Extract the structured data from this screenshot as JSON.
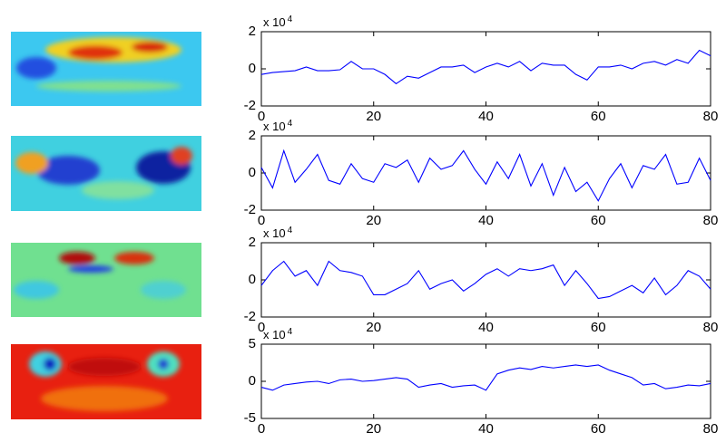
{
  "chart_data": [
    {
      "type": "line",
      "exponent": {
        "base": "x 10",
        "power": "4"
      },
      "x": [
        0,
        2,
        4,
        6,
        8,
        10,
        12,
        14,
        16,
        18,
        20,
        22,
        24,
        26,
        28,
        30,
        32,
        34,
        36,
        38,
        40,
        42,
        44,
        46,
        48,
        50,
        52,
        54,
        56,
        58,
        60,
        62,
        64,
        66,
        68,
        70,
        72,
        74,
        76,
        78,
        80
      ],
      "series": [
        {
          "color": "#0000ff",
          "values": [
            -0.3,
            -0.2,
            -0.15,
            -0.1,
            0.1,
            -0.1,
            -0.1,
            -0.05,
            0.4,
            0,
            0,
            -0.3,
            -0.8,
            -0.4,
            -0.5,
            -0.2,
            0.1,
            0.1,
            0.2,
            -0.2,
            0.1,
            0.3,
            0.1,
            0.4,
            -0.1,
            0.3,
            0.2,
            0.2,
            -0.3,
            -0.6,
            0.1,
            0.1,
            0.2,
            0,
            0.3,
            0.4,
            0.2,
            0.5,
            0.3,
            1.0,
            0.7
          ]
        }
      ],
      "xlim": [
        0,
        80
      ],
      "xticks": [
        0,
        20,
        40,
        60,
        80
      ],
      "ylim": [
        -2,
        2
      ],
      "yticks": [
        -2,
        0,
        2
      ]
    },
    {
      "type": "line",
      "exponent": {
        "base": "x 10",
        "power": "4"
      },
      "x": [
        0,
        2,
        4,
        6,
        8,
        10,
        12,
        14,
        16,
        18,
        20,
        22,
        24,
        26,
        28,
        30,
        32,
        34,
        36,
        38,
        40,
        42,
        44,
        46,
        48,
        50,
        52,
        54,
        56,
        58,
        60,
        62,
        64,
        66,
        68,
        70,
        72,
        74,
        76,
        78,
        80
      ],
      "series": [
        {
          "color": "#0000ff",
          "values": [
            0.3,
            -0.8,
            1.2,
            -0.5,
            0.2,
            1.0,
            -0.4,
            -0.6,
            0.5,
            -0.3,
            -0.5,
            0.5,
            0.3,
            0.7,
            -0.5,
            0.8,
            0.2,
            0.4,
            1.2,
            0.2,
            -0.6,
            0.6,
            -0.3,
            1.0,
            -0.7,
            0.5,
            -1.2,
            0.3,
            -1.0,
            -0.5,
            -1.5,
            -0.3,
            0.5,
            -0.8,
            0.4,
            0.2,
            1.0,
            -0.6,
            -0.5,
            0.8,
            -0.4
          ]
        }
      ],
      "xlim": [
        0,
        80
      ],
      "xticks": [
        0,
        20,
        40,
        60,
        80
      ],
      "ylim": [
        -2,
        2
      ],
      "yticks": [
        -2,
        0,
        2
      ]
    },
    {
      "type": "line",
      "exponent": {
        "base": "x 10",
        "power": "4"
      },
      "x": [
        0,
        2,
        4,
        6,
        8,
        10,
        12,
        14,
        16,
        18,
        20,
        22,
        24,
        26,
        28,
        30,
        32,
        34,
        36,
        38,
        40,
        42,
        44,
        46,
        48,
        50,
        52,
        54,
        56,
        58,
        60,
        62,
        64,
        66,
        68,
        70,
        72,
        74,
        76,
        78,
        80
      ],
      "series": [
        {
          "color": "#0000ff",
          "values": [
            -0.3,
            0.5,
            1.0,
            0.2,
            0.5,
            -0.3,
            1.0,
            0.5,
            0.4,
            0.2,
            -0.8,
            -0.8,
            -0.5,
            -0.2,
            0.5,
            -0.5,
            -0.2,
            0,
            -0.6,
            -0.2,
            0.3,
            0.6,
            0.2,
            0.6,
            0.5,
            0.6,
            0.8,
            -0.3,
            0.5,
            -0.2,
            -1.0,
            -0.9,
            -0.6,
            -0.3,
            -0.7,
            0.1,
            -0.8,
            -0.3,
            0.5,
            0.2,
            -0.5
          ]
        }
      ],
      "xlim": [
        0,
        80
      ],
      "xticks": [
        0,
        20,
        40,
        60,
        80
      ],
      "ylim": [
        -2,
        2
      ],
      "yticks": [
        -2,
        0,
        2
      ]
    },
    {
      "type": "line",
      "exponent": {
        "base": "x 10",
        "power": "4"
      },
      "x": [
        0,
        2,
        4,
        6,
        8,
        10,
        12,
        14,
        16,
        18,
        20,
        22,
        24,
        26,
        28,
        30,
        32,
        34,
        36,
        38,
        40,
        42,
        44,
        46,
        48,
        50,
        52,
        54,
        56,
        58,
        60,
        62,
        64,
        66,
        68,
        70,
        72,
        74,
        76,
        78,
        80
      ],
      "series": [
        {
          "color": "#0000ff",
          "values": [
            -0.8,
            -1.2,
            -0.5,
            -0.3,
            -0.1,
            0,
            -0.3,
            0.2,
            0.3,
            0,
            0.1,
            0.3,
            0.5,
            0.3,
            -0.8,
            -0.5,
            -0.3,
            -0.8,
            -0.6,
            -0.5,
            -1.2,
            1.0,
            1.5,
            1.8,
            1.6,
            2.0,
            1.8,
            2.0,
            2.2,
            2.0,
            2.2,
            1.5,
            1.0,
            0.5,
            -0.5,
            -0.3,
            -1.0,
            -0.8,
            -0.5,
            -0.6,
            -0.3
          ]
        }
      ],
      "xlim": [
        0,
        80
      ],
      "xticks": [
        0,
        20,
        40,
        60,
        80
      ],
      "ylim": [
        -5,
        5
      ],
      "yticks": [
        -5,
        0,
        5
      ]
    }
  ]
}
